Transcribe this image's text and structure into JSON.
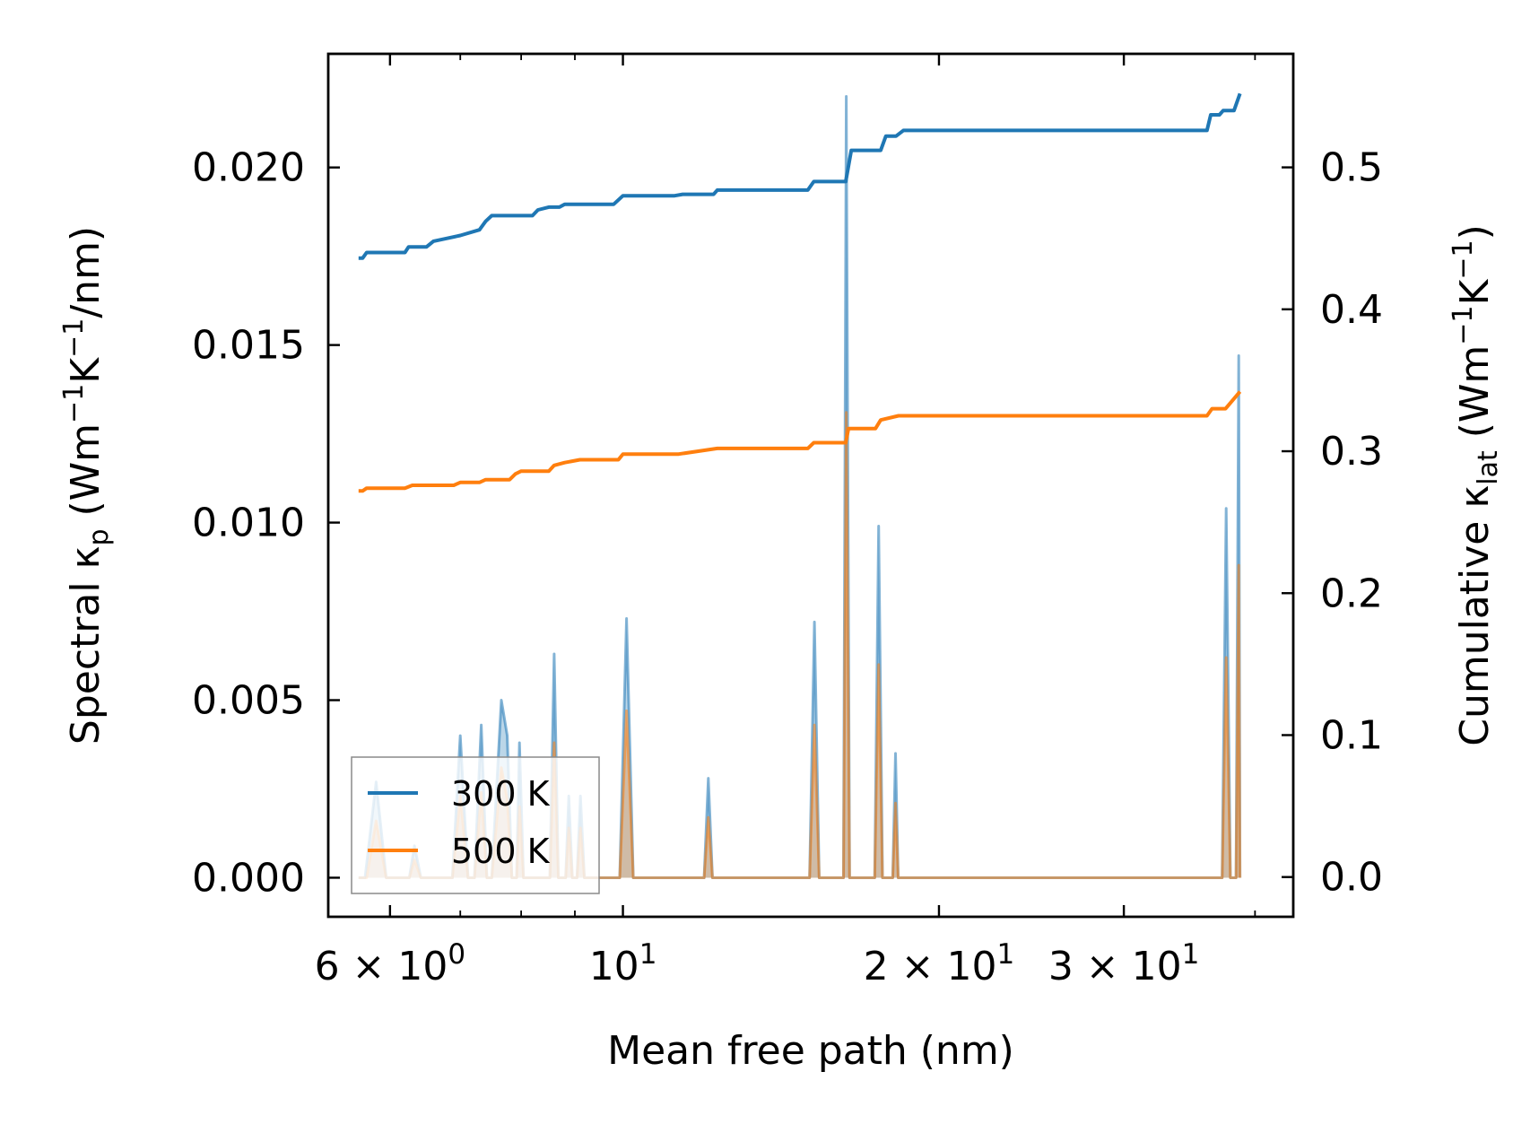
{
  "chart_data": {
    "type": "line",
    "xlabel": "Mean free path (nm)",
    "ylabel_left": {
      "prefix": "Spectral κ",
      "subscript": "p",
      "unit_open": " (Wm",
      "sup1": "−1",
      "mid": "K",
      "sup2": "−1",
      "unit_close": "/nm)"
    },
    "ylabel_right": {
      "prefix": "Cumulative κ",
      "subscript": "lat",
      "unit_open": " (Wm",
      "sup1": "−1",
      "mid": "K",
      "sup2": "−1",
      "unit_close": ")"
    },
    "x_scale": "log",
    "xlim": [
      5.24,
      43.5
    ],
    "ylim_left": [
      -0.0011,
      0.0232
    ],
    "ylim_right": [
      -0.028,
      0.58
    ],
    "x_ticks": [
      {
        "value": 6,
        "base": "6 × 10",
        "exp": "0"
      },
      {
        "value": 10,
        "base": "10",
        "exp": "1"
      },
      {
        "value": 20,
        "base": "2 × 10",
        "exp": "1"
      },
      {
        "value": 30,
        "base": "3 × 10",
        "exp": "1"
      }
    ],
    "x_minor_ticks": [
      7,
      8,
      9,
      40
    ],
    "y_left_ticks": [
      {
        "value": 0.0,
        "label": "0.000"
      },
      {
        "value": 0.005,
        "label": "0.005"
      },
      {
        "value": 0.01,
        "label": "0.010"
      },
      {
        "value": 0.015,
        "label": "0.015"
      },
      {
        "value": 0.02,
        "label": "0.020"
      }
    ],
    "y_right_ticks": [
      {
        "value": 0.0,
        "label": "0.0"
      },
      {
        "value": 0.1,
        "label": "0.1"
      },
      {
        "value": 0.2,
        "label": "0.2"
      },
      {
        "value": 0.3,
        "label": "0.3"
      },
      {
        "value": 0.4,
        "label": "0.4"
      },
      {
        "value": 0.5,
        "label": "0.5"
      }
    ],
    "legend": {
      "position": "lower-left"
    },
    "series": [
      {
        "name": "300 K",
        "color": "#1f77b4",
        "cumulative": [
          [
            5.6,
            0.436
          ],
          [
            5.65,
            0.436
          ],
          [
            5.7,
            0.44
          ],
          [
            6.2,
            0.44
          ],
          [
            6.25,
            0.444
          ],
          [
            6.5,
            0.444
          ],
          [
            6.6,
            0.448
          ],
          [
            6.8,
            0.45
          ],
          [
            7.0,
            0.452
          ],
          [
            7.3,
            0.456
          ],
          [
            7.4,
            0.462
          ],
          [
            7.5,
            0.466
          ],
          [
            7.7,
            0.466
          ],
          [
            8.2,
            0.466
          ],
          [
            8.3,
            0.47
          ],
          [
            8.5,
            0.472
          ],
          [
            8.7,
            0.472
          ],
          [
            8.8,
            0.474
          ],
          [
            9.0,
            0.474
          ],
          [
            9.8,
            0.474
          ],
          [
            10.0,
            0.48
          ],
          [
            11.2,
            0.48
          ],
          [
            11.4,
            0.481
          ],
          [
            12.2,
            0.481
          ],
          [
            12.3,
            0.484
          ],
          [
            15.0,
            0.484
          ],
          [
            15.2,
            0.49
          ],
          [
            16.3,
            0.49
          ],
          [
            16.5,
            0.512
          ],
          [
            17.6,
            0.512
          ],
          [
            17.8,
            0.522
          ],
          [
            18.2,
            0.522
          ],
          [
            18.5,
            0.526
          ],
          [
            36.0,
            0.526
          ],
          [
            36.3,
            0.537
          ],
          [
            37.0,
            0.537
          ],
          [
            37.3,
            0.54
          ],
          [
            38.2,
            0.54
          ],
          [
            38.7,
            0.552
          ]
        ],
        "spectral": [
          [
            5.6,
            0.0
          ],
          [
            5.68,
            0.0
          ],
          [
            5.82,
            0.0027
          ],
          [
            5.95,
            0.0
          ],
          [
            6.26,
            0.0
          ],
          [
            6.33,
            0.0009
          ],
          [
            6.42,
            0.0
          ],
          [
            6.88,
            0.0
          ],
          [
            7.0,
            0.004
          ],
          [
            7.12,
            0.0
          ],
          [
            7.22,
            0.0
          ],
          [
            7.33,
            0.0043
          ],
          [
            7.42,
            0.0
          ],
          [
            7.5,
            0.0
          ],
          [
            7.66,
            0.005
          ],
          [
            7.76,
            0.004
          ],
          [
            7.84,
            0.0
          ],
          [
            7.92,
            0.0
          ],
          [
            7.97,
            0.0038
          ],
          [
            8.04,
            0.0
          ],
          [
            8.52,
            0.0
          ],
          [
            8.6,
            0.0063
          ],
          [
            8.68,
            0.0
          ],
          [
            8.82,
            0.0
          ],
          [
            8.88,
            0.0023
          ],
          [
            8.95,
            0.0
          ],
          [
            9.04,
            0.0
          ],
          [
            9.11,
            0.0023
          ],
          [
            9.19,
            0.0
          ],
          [
            9.93,
            0.0
          ],
          [
            10.08,
            0.0073
          ],
          [
            10.23,
            0.0
          ],
          [
            11.95,
            0.0
          ],
          [
            12.06,
            0.0028
          ],
          [
            12.17,
            0.0
          ],
          [
            15.06,
            0.0
          ],
          [
            15.22,
            0.0072
          ],
          [
            15.38,
            0.0
          ],
          [
            16.15,
            0.0
          ],
          [
            16.22,
            0.0
          ],
          [
            16.32,
            0.022
          ],
          [
            16.44,
            0.0
          ],
          [
            16.6,
            0.0
          ],
          [
            17.37,
            0.0
          ],
          [
            17.52,
            0.0099
          ],
          [
            17.67,
            0.0
          ],
          [
            18.07,
            0.0
          ],
          [
            18.18,
            0.0035
          ],
          [
            18.29,
            0.0
          ],
          [
            37.22,
            0.0
          ],
          [
            37.55,
            0.0104
          ],
          [
            37.9,
            0.0
          ],
          [
            38.37,
            0.0
          ],
          [
            38.6,
            0.0147
          ],
          [
            38.7,
            0.0
          ]
        ]
      },
      {
        "name": "500 K",
        "color": "#ff7f0e",
        "cumulative": [
          [
            5.6,
            0.272
          ],
          [
            5.65,
            0.272
          ],
          [
            5.7,
            0.274
          ],
          [
            6.2,
            0.274
          ],
          [
            6.3,
            0.276
          ],
          [
            6.9,
            0.276
          ],
          [
            7.0,
            0.278
          ],
          [
            7.3,
            0.278
          ],
          [
            7.4,
            0.28
          ],
          [
            7.8,
            0.28
          ],
          [
            7.9,
            0.284
          ],
          [
            8.0,
            0.286
          ],
          [
            8.2,
            0.286
          ],
          [
            8.5,
            0.286
          ],
          [
            8.6,
            0.29
          ],
          [
            8.8,
            0.292
          ],
          [
            9.1,
            0.294
          ],
          [
            9.9,
            0.294
          ],
          [
            10.0,
            0.298
          ],
          [
            11.3,
            0.298
          ],
          [
            12.3,
            0.302
          ],
          [
            15.0,
            0.302
          ],
          [
            15.2,
            0.306
          ],
          [
            16.3,
            0.306
          ],
          [
            16.4,
            0.316
          ],
          [
            17.4,
            0.316
          ],
          [
            17.6,
            0.322
          ],
          [
            18.3,
            0.325
          ],
          [
            36.0,
            0.325
          ],
          [
            36.4,
            0.33
          ],
          [
            37.5,
            0.33
          ],
          [
            38.7,
            0.342
          ]
        ],
        "spectral": [
          [
            5.6,
            0.0
          ],
          [
            5.7,
            0.0
          ],
          [
            5.82,
            0.0016
          ],
          [
            5.95,
            0.0
          ],
          [
            6.26,
            0.0
          ],
          [
            6.33,
            0.0005
          ],
          [
            6.42,
            0.0
          ],
          [
            6.88,
            0.0
          ],
          [
            7.0,
            0.0023
          ],
          [
            7.12,
            0.0
          ],
          [
            7.22,
            0.0
          ],
          [
            7.33,
            0.0024
          ],
          [
            7.42,
            0.0
          ],
          [
            7.5,
            0.0
          ],
          [
            7.66,
            0.0031
          ],
          [
            7.76,
            0.0022
          ],
          [
            7.84,
            0.0
          ],
          [
            7.92,
            0.0
          ],
          [
            7.97,
            0.002
          ],
          [
            8.04,
            0.0
          ],
          [
            8.52,
            0.0
          ],
          [
            8.6,
            0.0038
          ],
          [
            8.68,
            0.0
          ],
          [
            8.82,
            0.0
          ],
          [
            8.88,
            0.0014
          ],
          [
            8.95,
            0.0
          ],
          [
            9.04,
            0.0
          ],
          [
            9.11,
            0.0014
          ],
          [
            9.19,
            0.0
          ],
          [
            9.93,
            0.0
          ],
          [
            10.08,
            0.0047
          ],
          [
            10.23,
            0.0
          ],
          [
            11.95,
            0.0
          ],
          [
            12.06,
            0.0017
          ],
          [
            12.17,
            0.0
          ],
          [
            15.06,
            0.0
          ],
          [
            15.22,
            0.0043
          ],
          [
            15.38,
            0.0
          ],
          [
            16.22,
            0.0
          ],
          [
            16.32,
            0.0131
          ],
          [
            16.44,
            0.0
          ],
          [
            17.37,
            0.0
          ],
          [
            17.52,
            0.006
          ],
          [
            17.67,
            0.0
          ],
          [
            18.07,
            0.0
          ],
          [
            18.18,
            0.0021
          ],
          [
            18.29,
            0.0
          ],
          [
            37.22,
            0.0
          ],
          [
            37.55,
            0.0062
          ],
          [
            37.9,
            0.0
          ],
          [
            38.37,
            0.0
          ],
          [
            38.6,
            0.0088
          ],
          [
            38.7,
            0.0
          ]
        ]
      }
    ]
  }
}
